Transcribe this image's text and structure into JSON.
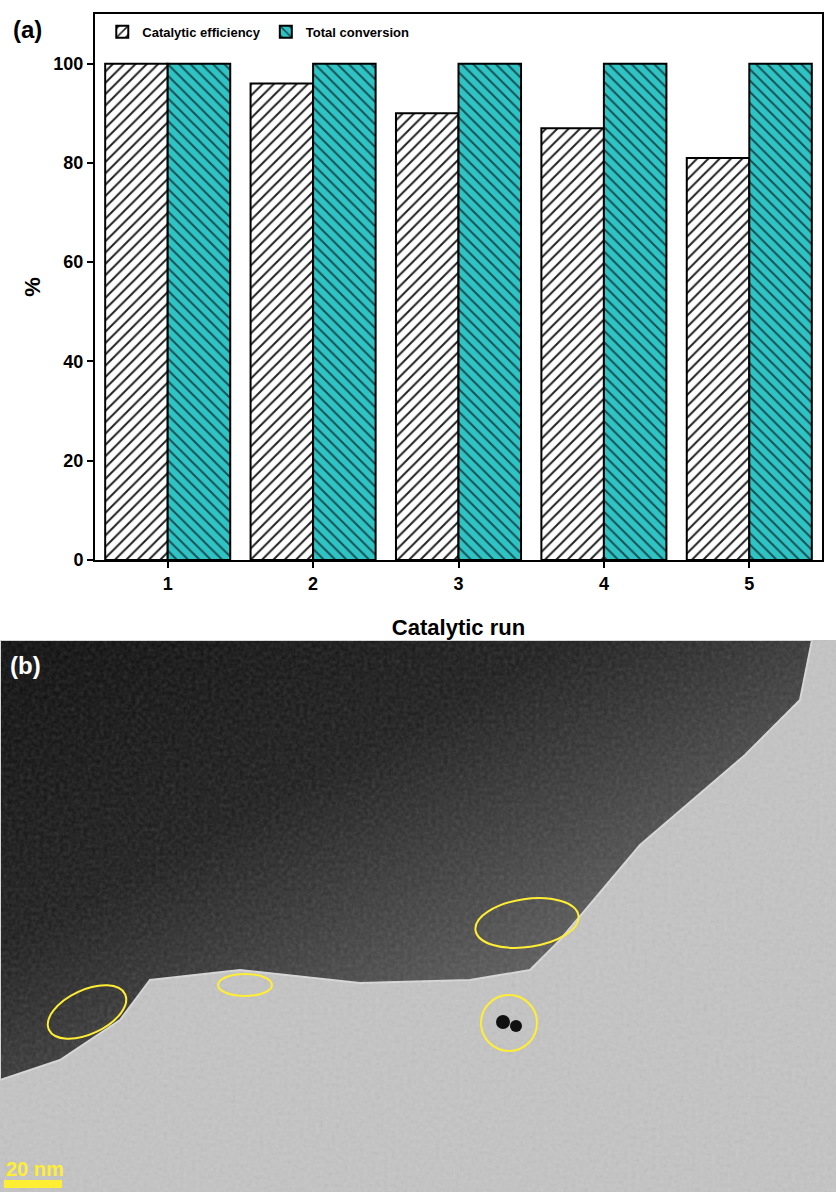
{
  "chart_data": {
    "type": "bar",
    "panel_label": "(a)",
    "categories": [
      "1",
      "2",
      "3",
      "4",
      "5"
    ],
    "series": [
      {
        "name": "Catalytic efficiency",
        "color": "#ffffff",
        "values": [
          100,
          96,
          90,
          87,
          81
        ]
      },
      {
        "name": "Total conversion",
        "color": "#2ec4c4",
        "values": [
          100,
          100,
          100,
          100,
          100
        ]
      }
    ],
    "x_label": "Catalytic run",
    "y_label": "%",
    "ylim": [
      0,
      110
    ],
    "yticks": [
      0,
      20,
      40,
      60,
      80,
      100
    ],
    "grid": false,
    "legend": "top-left"
  },
  "image_panel": {
    "panel_label": "(b)",
    "scale_bar": "20 nm"
  }
}
